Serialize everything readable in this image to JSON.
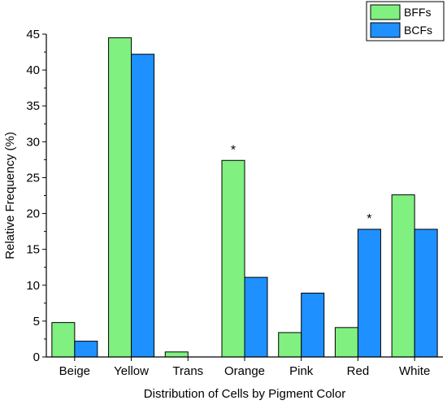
{
  "chart_data": {
    "type": "bar",
    "title": "",
    "xlabel": "Distribution of Cells by Pigment Color",
    "ylabel": "Relative Frequency (%)",
    "categories": [
      "Beige",
      "Yellow",
      "Trans",
      "Orange",
      "Pink",
      "Red",
      "White"
    ],
    "series": [
      {
        "name": "BFFs",
        "color": "#80f080",
        "values": [
          4.8,
          44.5,
          0.7,
          27.4,
          3.4,
          4.1,
          22.6
        ]
      },
      {
        "name": "BCFs",
        "color": "#1e90ff",
        "values": [
          2.2,
          42.2,
          0,
          11.1,
          8.9,
          17.8,
          17.8
        ]
      }
    ],
    "ylim": [
      0,
      45
    ],
    "yticks": [
      0,
      5,
      10,
      15,
      20,
      25,
      30,
      35,
      40,
      45
    ],
    "grid": false,
    "legend_position": "top-right",
    "annotations": [
      {
        "category": "Orange",
        "series": "BFFs",
        "text": "*"
      },
      {
        "category": "Red",
        "series": "BCFs",
        "text": "*"
      }
    ]
  }
}
